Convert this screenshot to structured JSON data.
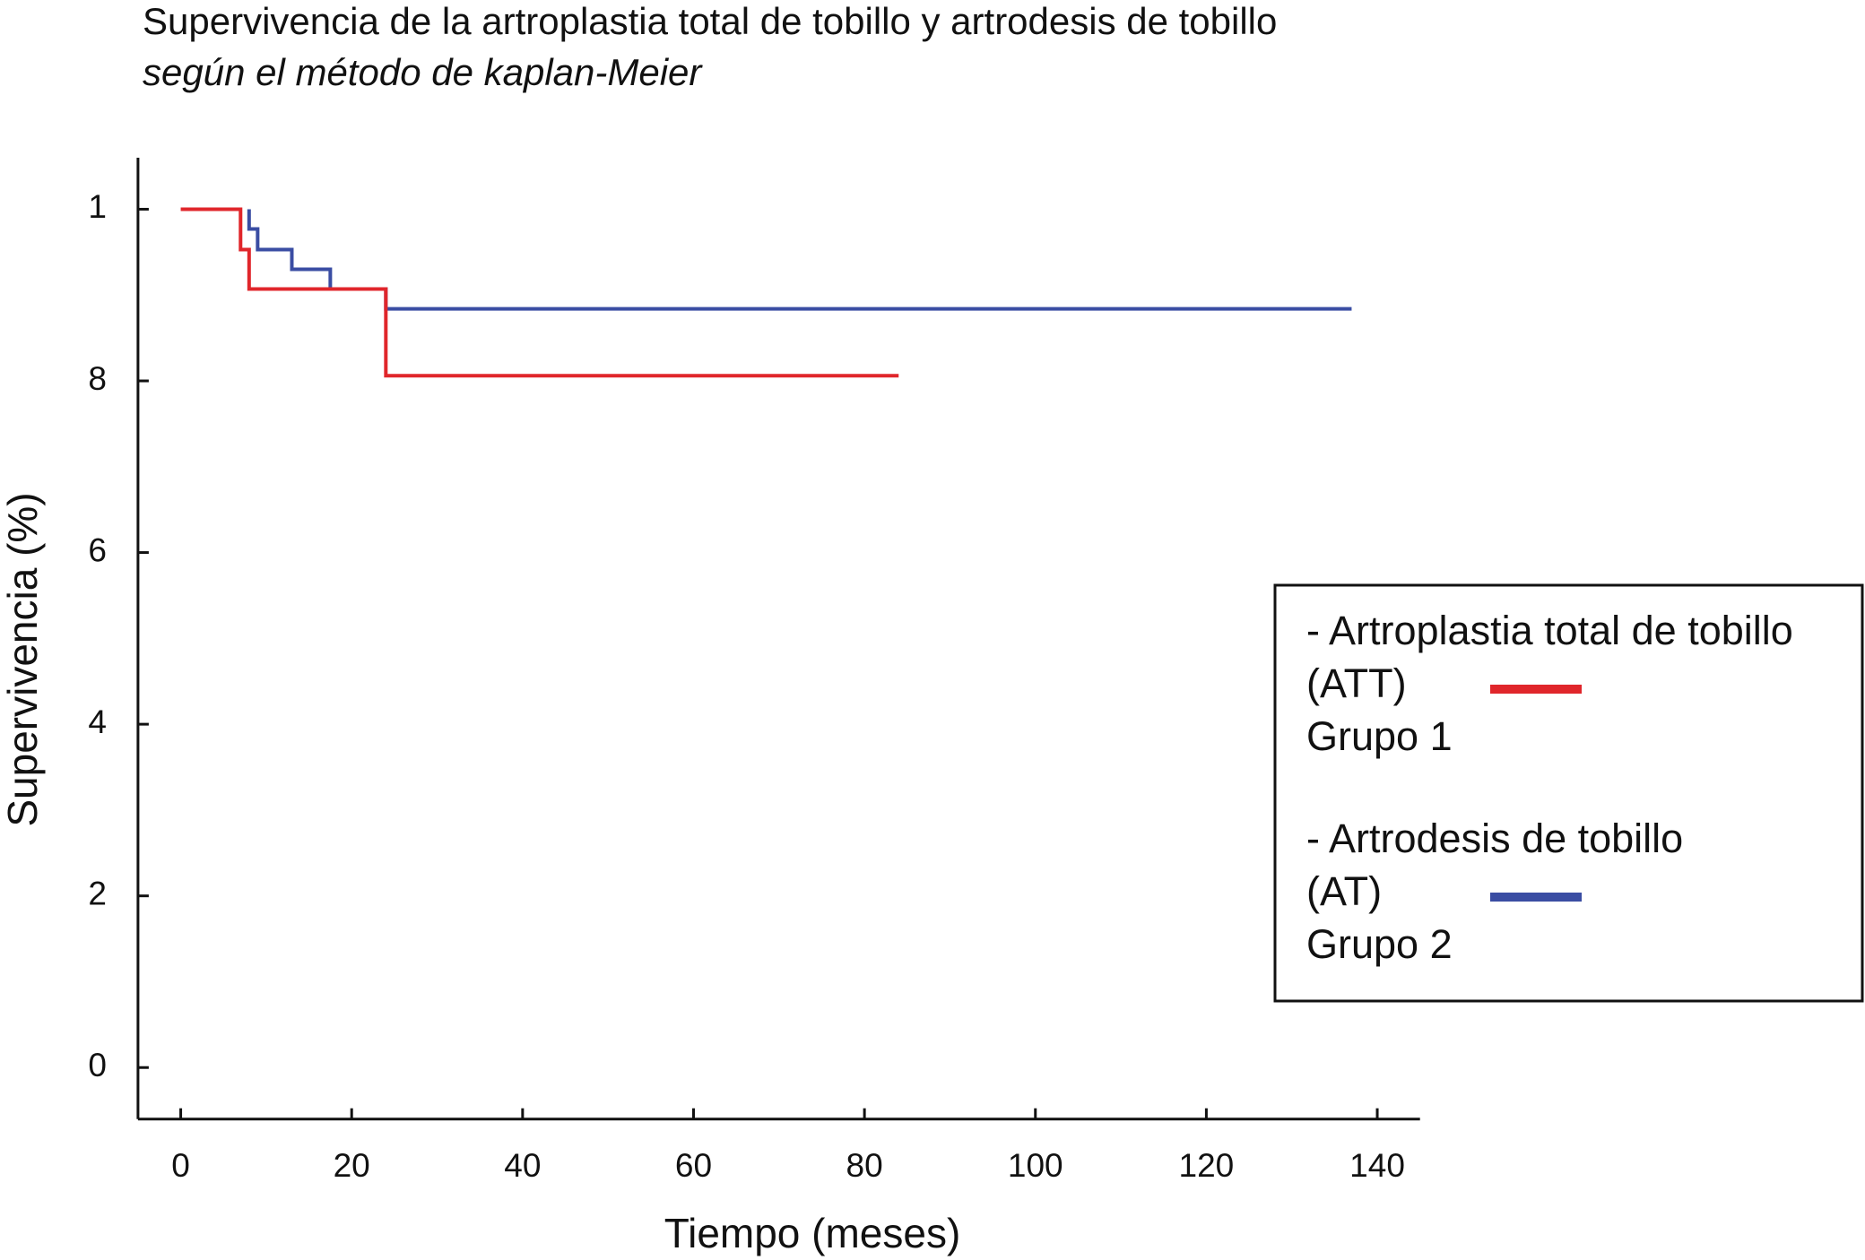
{
  "chart_data": {
    "type": "step",
    "title": "Supervivencia de la artroplastia total de tobillo y artrodesis de tobillo",
    "subtitle": "según el método de kaplan-Meier",
    "x_label": "Tiempo (meses)",
    "y_label": "Supervivencia (%)",
    "xlim": [
      -5,
      145
    ],
    "ylim": [
      -0.06,
      1.06
    ],
    "xticks": [
      0,
      20,
      40,
      60,
      80,
      100,
      120,
      140
    ],
    "yticks": [
      0,
      {
        "value": 0.2,
        "label": "2"
      },
      {
        "value": 0.4,
        "label": "4"
      },
      {
        "value": 0.6,
        "label": "6"
      },
      {
        "value": 0.8,
        "label": "8"
      },
      1
    ],
    "legend": "right",
    "series": [
      {
        "name": [
          "- Artroplastia total de tobillo",
          "(ATT)",
          "Grupo 1"
        ],
        "color": "#e0262b",
        "x": [
          0,
          7,
          8,
          24,
          84
        ],
        "values": [
          1,
          0.953,
          0.907,
          0.806,
          0.806
        ]
      },
      {
        "name": [
          "- Artrodesis de tobillo",
          "(AT)",
          "Grupo 2"
        ],
        "color": "#3a4da3",
        "x": [
          8,
          8,
          9,
          13,
          17.5,
          24,
          137
        ],
        "values": [
          1,
          0.977,
          0.953,
          0.93,
          0.907,
          0.884,
          0.884
        ]
      }
    ]
  }
}
